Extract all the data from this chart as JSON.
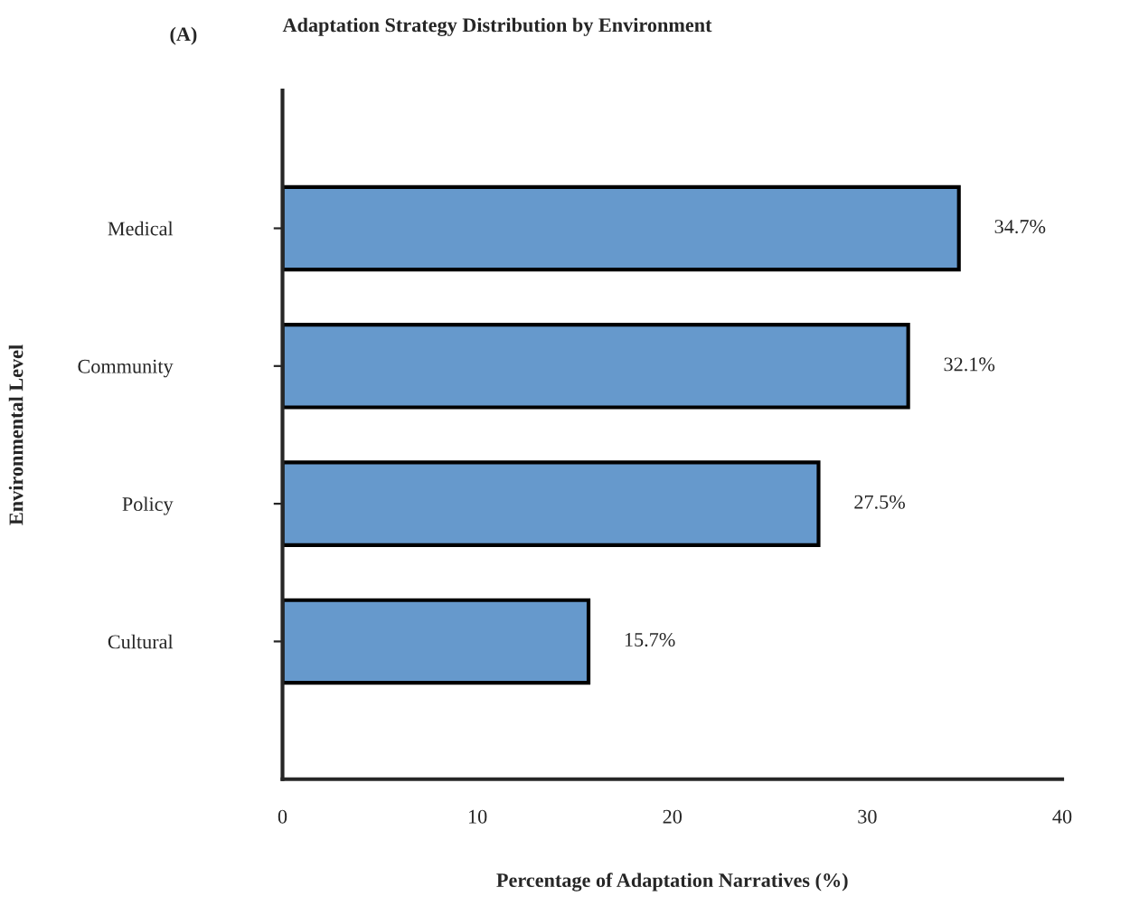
{
  "chart_data": {
    "type": "bar",
    "orientation": "horizontal",
    "title": "Adaptation Strategy Distribution by Environment",
    "annotations": [
      "(A)"
    ],
    "xlabel": "Percentage of Adaptation Narratives (%)",
    "ylabel": "Environmental Level",
    "categories": [
      "Medical",
      "Community",
      "Policy",
      "Cultural"
    ],
    "values": [
      34.7,
      32.1,
      27.5,
      15.7
    ],
    "value_labels": [
      "34.7%",
      "32.1%",
      "27.5%",
      "15.7%"
    ],
    "color": "#6699cc",
    "xlim": [
      0,
      40
    ],
    "xticks": [
      0,
      10,
      20,
      30,
      40
    ],
    "grid": false,
    "legend": false
  }
}
